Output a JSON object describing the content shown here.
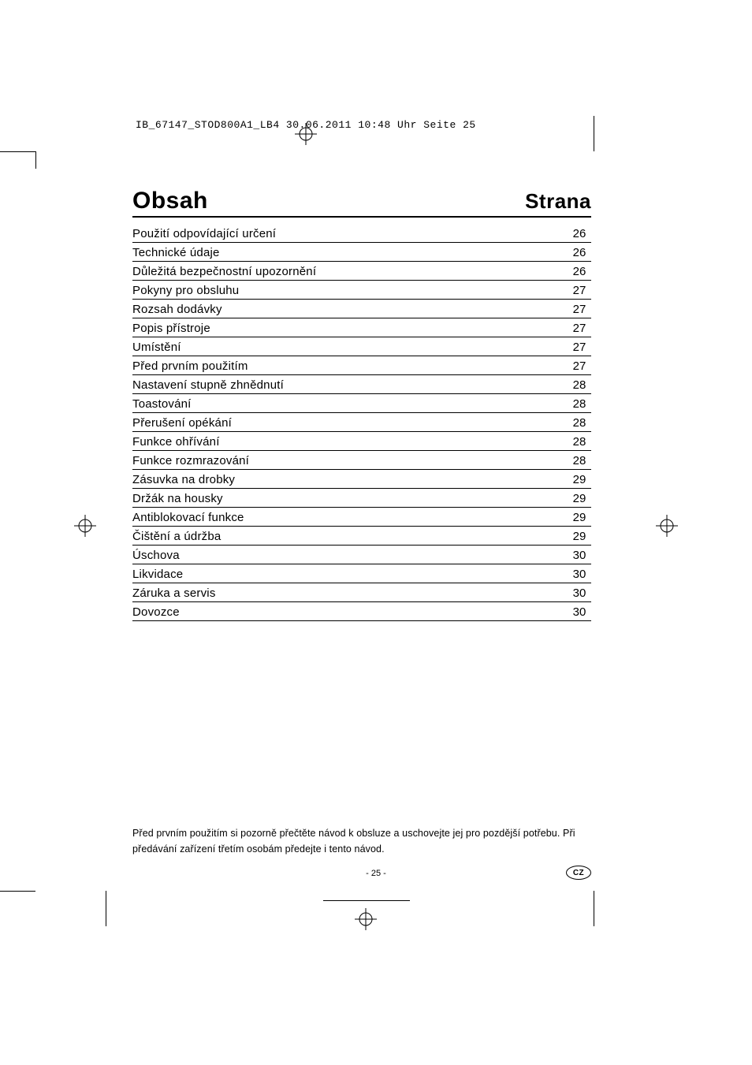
{
  "header_line": "IB_67147_STOD800A1_LB4  30.06.2011  10:48 Uhr  Seite 25",
  "title_left": "Obsah",
  "title_right": "Strana",
  "toc": [
    {
      "label": "Použití odpovídající určení",
      "page": "26"
    },
    {
      "label": "Technické údaje",
      "page": "26"
    },
    {
      "label": "Důležitá bezpečnostní upozornění",
      "page": "26"
    },
    {
      "label": "Pokyny pro obsluhu",
      "page": "27"
    },
    {
      "label": "Rozsah dodávky",
      "page": "27"
    },
    {
      "label": "Popis přístroje",
      "page": "27"
    },
    {
      "label": "Umístění",
      "page": "27"
    },
    {
      "label": "Před prvním použitím",
      "page": "27"
    },
    {
      "label": "Nastavení stupně zhnědnutí",
      "page": "28"
    },
    {
      "label": "Toastování",
      "page": "28"
    },
    {
      "label": "Přerušení opékání",
      "page": "28"
    },
    {
      "label": "Funkce ohřívání",
      "page": "28"
    },
    {
      "label": "Funkce rozmrazování",
      "page": "28"
    },
    {
      "label": "Zásuvka na drobky",
      "page": "29"
    },
    {
      "label": "Držák na housky",
      "page": "29"
    },
    {
      "label": "Antiblokovací funkce",
      "page": "29"
    },
    {
      "label": "Čištění a údržba",
      "page": "29"
    },
    {
      "label": "Úschova",
      "page": "30"
    },
    {
      "label": "Likvidace",
      "page": "30"
    },
    {
      "label": "Záruka a servis",
      "page": "30"
    },
    {
      "label": "Dovozce",
      "page": "30"
    }
  ],
  "footer_note": "Před prvním použitím si pozorně přečtěte návod k obsluze a uschovejte jej pro pozdější potřebu. Při předávání zařízení třetím osobám předejte i tento návod.",
  "page_number": "- 25 -",
  "country_code": "CZ",
  "colors": {
    "text": "#000000",
    "bg": "#ffffff"
  },
  "typography": {
    "title_fontsize": 30,
    "body_fontsize": 15,
    "footer_fontsize": 12.5
  }
}
